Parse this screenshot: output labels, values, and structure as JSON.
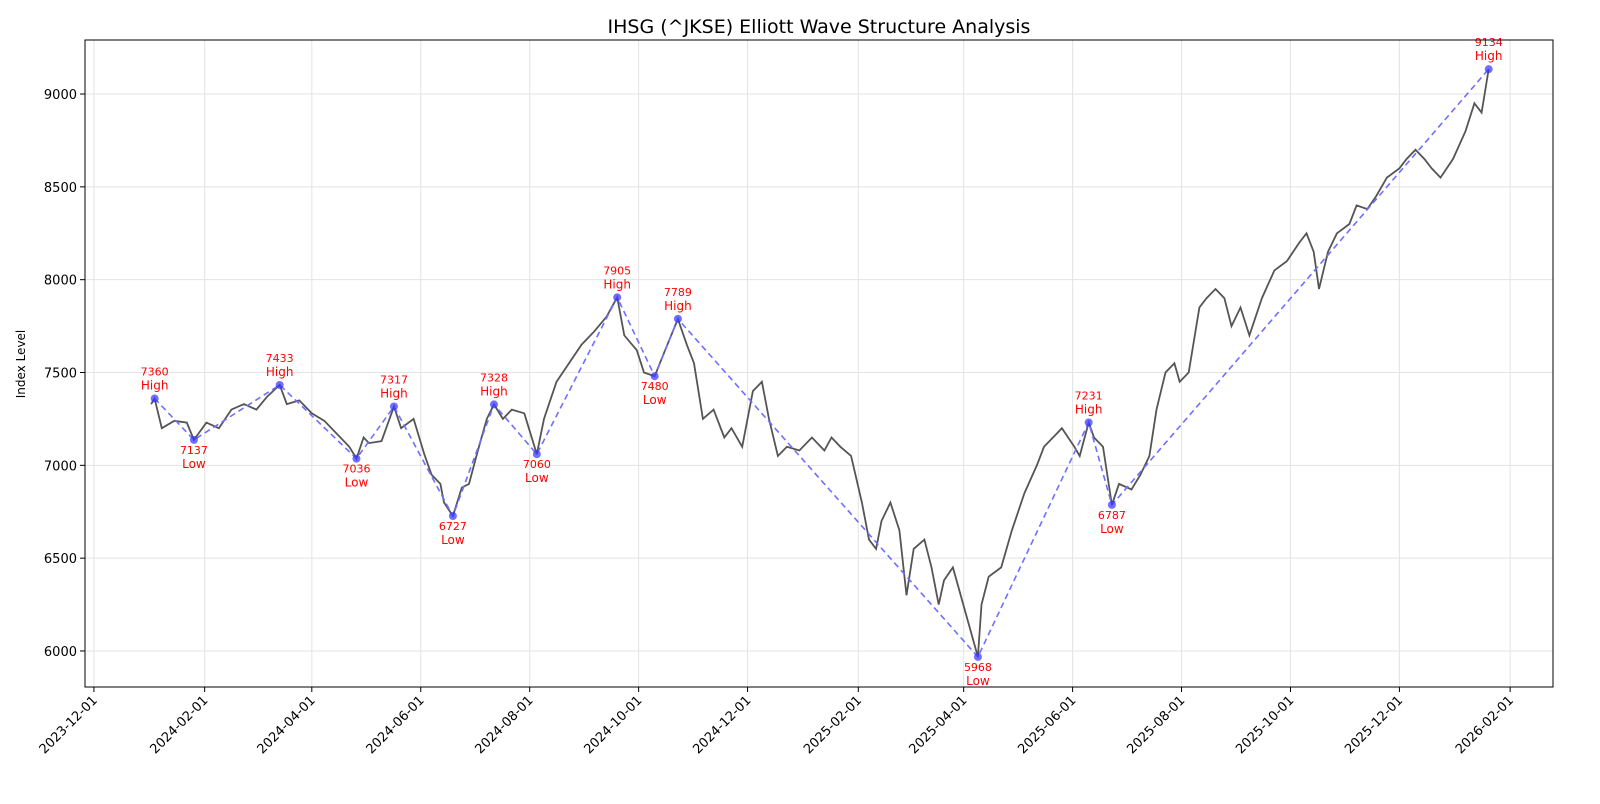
{
  "chart_data": {
    "type": "line",
    "title": "IHSG (^JKSE) Elliott Wave Structure Analysis",
    "xlabel": "",
    "ylabel": "Index Level",
    "xlim": [
      "2023-11-26",
      "2026-02-25"
    ],
    "ylim": [
      5806,
      9291
    ],
    "grid": true,
    "x_ticks": [
      "2023-12-01",
      "2024-02-01",
      "2024-04-01",
      "2024-06-01",
      "2024-08-01",
      "2024-10-01",
      "2024-12-01",
      "2025-02-01",
      "2025-04-01",
      "2025-06-01",
      "2025-08-01",
      "2025-10-01",
      "2025-12-01",
      "2026-02-01"
    ],
    "y_ticks": [
      6000,
      6500,
      7000,
      7500,
      8000,
      8500,
      9000
    ],
    "colors": {
      "price": "#555555",
      "wave": "#6f6fff",
      "pivot": "#3333ff",
      "label": "#ff0000"
    },
    "price_series": [
      [
        "2024-01-02",
        7330
      ],
      [
        "2024-01-04",
        7360
      ],
      [
        "2024-01-08",
        7200
      ],
      [
        "2024-01-15",
        7240
      ],
      [
        "2024-01-22",
        7230
      ],
      [
        "2024-01-26",
        7137
      ],
      [
        "2024-02-02",
        7230
      ],
      [
        "2024-02-09",
        7200
      ],
      [
        "2024-02-16",
        7300
      ],
      [
        "2024-02-23",
        7330
      ],
      [
        "2024-03-01",
        7300
      ],
      [
        "2024-03-07",
        7370
      ],
      [
        "2024-03-14",
        7433
      ],
      [
        "2024-03-18",
        7330
      ],
      [
        "2024-03-25",
        7350
      ],
      [
        "2024-04-01",
        7280
      ],
      [
        "2024-04-08",
        7240
      ],
      [
        "2024-04-15",
        7170
      ],
      [
        "2024-04-22",
        7100
      ],
      [
        "2024-04-26",
        7036
      ],
      [
        "2024-04-30",
        7150
      ],
      [
        "2024-05-03",
        7120
      ],
      [
        "2024-05-10",
        7130
      ],
      [
        "2024-05-17",
        7317
      ],
      [
        "2024-05-21",
        7200
      ],
      [
        "2024-05-28",
        7250
      ],
      [
        "2024-06-03",
        7060
      ],
      [
        "2024-06-07",
        6950
      ],
      [
        "2024-06-12",
        6900
      ],
      [
        "2024-06-14",
        6800
      ],
      [
        "2024-06-19",
        6727
      ],
      [
        "2024-06-24",
        6880
      ],
      [
        "2024-06-28",
        6900
      ],
      [
        "2024-07-03",
        7080
      ],
      [
        "2024-07-08",
        7250
      ],
      [
        "2024-07-12",
        7328
      ],
      [
        "2024-07-17",
        7250
      ],
      [
        "2024-07-22",
        7300
      ],
      [
        "2024-07-29",
        7280
      ],
      [
        "2024-08-05",
        7060
      ],
      [
        "2024-08-09",
        7250
      ],
      [
        "2024-08-16",
        7450
      ],
      [
        "2024-08-23",
        7550
      ],
      [
        "2024-08-30",
        7650
      ],
      [
        "2024-09-06",
        7720
      ],
      [
        "2024-09-13",
        7800
      ],
      [
        "2024-09-19",
        7905
      ],
      [
        "2024-09-23",
        7700
      ],
      [
        "2024-09-30",
        7620
      ],
      [
        "2024-10-04",
        7500
      ],
      [
        "2024-10-10",
        7480
      ],
      [
        "2024-10-15",
        7600
      ],
      [
        "2024-10-23",
        7789
      ],
      [
        "2024-10-28",
        7650
      ],
      [
        "2024-11-01",
        7550
      ],
      [
        "2024-11-06",
        7250
      ],
      [
        "2024-11-12",
        7300
      ],
      [
        "2024-11-18",
        7150
      ],
      [
        "2024-11-22",
        7200
      ],
      [
        "2024-11-28",
        7100
      ],
      [
        "2024-12-04",
        7400
      ],
      [
        "2024-12-09",
        7450
      ],
      [
        "2024-12-13",
        7250
      ],
      [
        "2024-12-18",
        7050
      ],
      [
        "2024-12-23",
        7100
      ],
      [
        "2024-12-30",
        7080
      ],
      [
        "2025-01-06",
        7150
      ],
      [
        "2025-01-13",
        7080
      ],
      [
        "2025-01-17",
        7150
      ],
      [
        "2025-01-22",
        7100
      ],
      [
        "2025-01-28",
        7050
      ],
      [
        "2025-02-03",
        6800
      ],
      [
        "2025-02-07",
        6600
      ],
      [
        "2025-02-11",
        6550
      ],
      [
        "2025-02-14",
        6700
      ],
      [
        "2025-02-19",
        6800
      ],
      [
        "2025-02-24",
        6650
      ],
      [
        "2025-02-28",
        6300
      ],
      [
        "2025-03-04",
        6550
      ],
      [
        "2025-03-10",
        6600
      ],
      [
        "2025-03-14",
        6450
      ],
      [
        "2025-03-18",
        6250
      ],
      [
        "2025-03-21",
        6380
      ],
      [
        "2025-03-26",
        6450
      ],
      [
        "2025-04-09",
        5968
      ],
      [
        "2025-04-11",
        6250
      ],
      [
        "2025-04-15",
        6400
      ],
      [
        "2025-04-22",
        6450
      ],
      [
        "2025-04-28",
        6650
      ],
      [
        "2025-05-05",
        6850
      ],
      [
        "2025-05-12",
        7000
      ],
      [
        "2025-05-16",
        7100
      ],
      [
        "2025-05-21",
        7150
      ],
      [
        "2025-05-26",
        7200
      ],
      [
        "2025-06-02",
        7100
      ],
      [
        "2025-06-05",
        7050
      ],
      [
        "2025-06-10",
        7231
      ],
      [
        "2025-06-13",
        7150
      ],
      [
        "2025-06-18",
        7100
      ],
      [
        "2025-06-23",
        6787
      ],
      [
        "2025-06-27",
        6900
      ],
      [
        "2025-07-04",
        6870
      ],
      [
        "2025-07-09",
        6950
      ],
      [
        "2025-07-14",
        7050
      ],
      [
        "2025-07-18",
        7300
      ],
      [
        "2025-07-23",
        7500
      ],
      [
        "2025-07-28",
        7550
      ],
      [
        "2025-07-31",
        7450
      ],
      [
        "2025-08-05",
        7500
      ],
      [
        "2025-08-11",
        7850
      ],
      [
        "2025-08-15",
        7900
      ],
      [
        "2025-08-20",
        7950
      ],
      [
        "2025-08-25",
        7900
      ],
      [
        "2025-08-29",
        7750
      ],
      [
        "2025-09-03",
        7850
      ],
      [
        "2025-09-08",
        7700
      ],
      [
        "2025-09-15",
        7900
      ],
      [
        "2025-09-22",
        8050
      ],
      [
        "2025-09-29",
        8100
      ],
      [
        "2025-10-06",
        8200
      ],
      [
        "2025-10-10",
        8250
      ],
      [
        "2025-10-14",
        8150
      ],
      [
        "2025-10-17",
        7950
      ],
      [
        "2025-10-22",
        8150
      ],
      [
        "2025-10-27",
        8250
      ],
      [
        "2025-11-03",
        8300
      ],
      [
        "2025-11-07",
        8400
      ],
      [
        "2025-11-13",
        8380
      ],
      [
        "2025-11-18",
        8450
      ],
      [
        "2025-11-24",
        8550
      ],
      [
        "2025-12-01",
        8600
      ],
      [
        "2025-12-05",
        8650
      ],
      [
        "2025-12-10",
        8700
      ],
      [
        "2025-12-15",
        8650
      ],
      [
        "2025-12-19",
        8600
      ],
      [
        "2025-12-24",
        8550
      ],
      [
        "2025-12-31",
        8650
      ],
      [
        "2026-01-07",
        8800
      ],
      [
        "2026-01-12",
        8950
      ],
      [
        "2026-01-16",
        8900
      ],
      [
        "2026-01-20",
        9134
      ]
    ],
    "pivots": [
      {
        "date": "2024-01-04",
        "value": 7360,
        "value_label": "7360",
        "type": "High"
      },
      {
        "date": "2024-01-26",
        "value": 7137,
        "value_label": "7137",
        "type": "Low"
      },
      {
        "date": "2024-03-14",
        "value": 7433,
        "value_label": "7433",
        "type": "High"
      },
      {
        "date": "2024-04-26",
        "value": 7036,
        "value_label": "7036",
        "type": "Low"
      },
      {
        "date": "2024-05-17",
        "value": 7317,
        "value_label": "7317",
        "type": "High"
      },
      {
        "date": "2024-06-19",
        "value": 6727,
        "value_label": "6727",
        "type": "Low"
      },
      {
        "date": "2024-07-12",
        "value": 7328,
        "value_label": "7328",
        "type": "High"
      },
      {
        "date": "2024-08-05",
        "value": 7060,
        "value_label": "7060",
        "type": "Low"
      },
      {
        "date": "2024-09-19",
        "value": 7905,
        "value_label": "7905",
        "type": "High"
      },
      {
        "date": "2024-10-10",
        "value": 7480,
        "value_label": "7480",
        "type": "Low"
      },
      {
        "date": "2024-10-23",
        "value": 7789,
        "value_label": "7789",
        "type": "High"
      },
      {
        "date": "2025-04-09",
        "value": 5968,
        "value_label": "5968",
        "type": "Low"
      },
      {
        "date": "2025-06-10",
        "value": 7231,
        "value_label": "7231",
        "type": "High"
      },
      {
        "date": "2025-06-23",
        "value": 6787,
        "value_label": "6787",
        "type": "Low"
      },
      {
        "date": "2026-01-20",
        "value": 9134,
        "value_label": "9134",
        "type": "High"
      }
    ]
  }
}
